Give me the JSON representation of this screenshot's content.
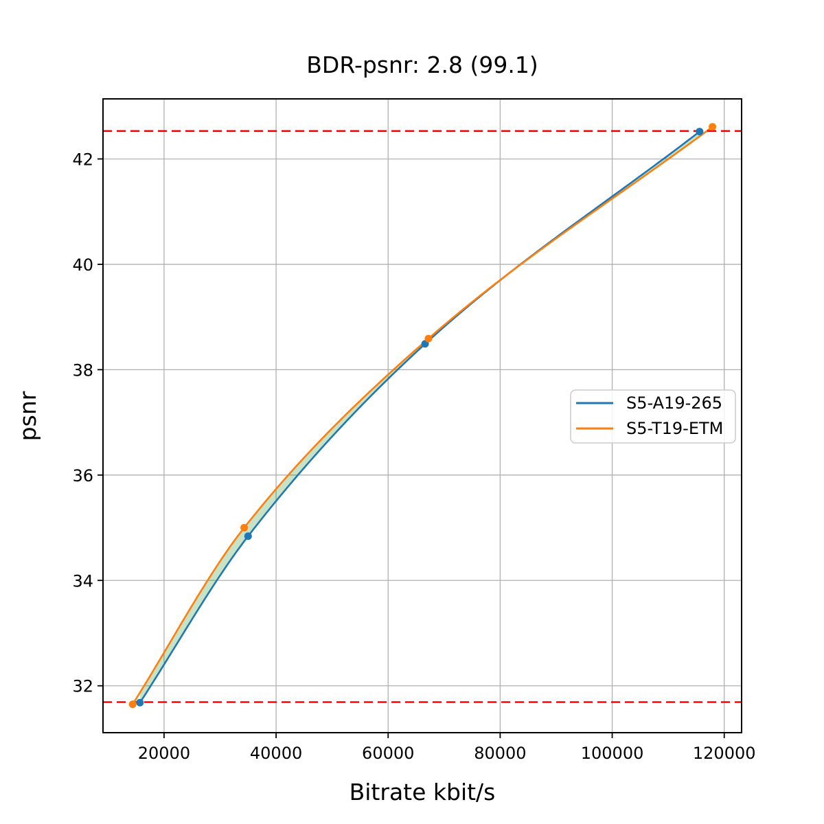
{
  "chart_data": {
    "type": "line",
    "title": "BDR-psnr: 2.8 (99.1)",
    "xlabel": "Bitrate kbit/s",
    "ylabel": "psnr",
    "xlim": [
      9100,
      123100
    ],
    "ylim": [
      31.11,
      43.14
    ],
    "x_ticks": [
      20000,
      40000,
      60000,
      80000,
      100000,
      120000
    ],
    "y_ticks": [
      32,
      34,
      36,
      38,
      40,
      42
    ],
    "grid": true,
    "grid_color": "#b0b0b0",
    "spine_color": "#000000",
    "background_color": "#ffffff",
    "legend_position": "center-right",
    "series": [
      {
        "name": "S5-A19-265",
        "color": "#1f77b4",
        "marker": "circle",
        "points": [
          [
            15700,
            31.68
          ],
          [
            35000,
            34.84
          ],
          [
            66600,
            38.49
          ],
          [
            115600,
            42.52
          ]
        ]
      },
      {
        "name": "S5-T19-ETM",
        "color": "#ff7f0e",
        "marker": "circle",
        "points": [
          [
            14400,
            31.65
          ],
          [
            34300,
            35.0
          ],
          [
            67200,
            38.59
          ],
          [
            117900,
            42.61
          ]
        ]
      }
    ],
    "reference_lines": [
      {
        "y": 42.53,
        "color": "#ff0000",
        "style": "dashed"
      },
      {
        "y": 31.69,
        "color": "#ff0000",
        "style": "dashed"
      }
    ],
    "fill_between": {
      "color": "rgba(0, 128, 0, 0.22)",
      "description": "shaded area between the two curves over their overlapping bitrate range"
    }
  }
}
